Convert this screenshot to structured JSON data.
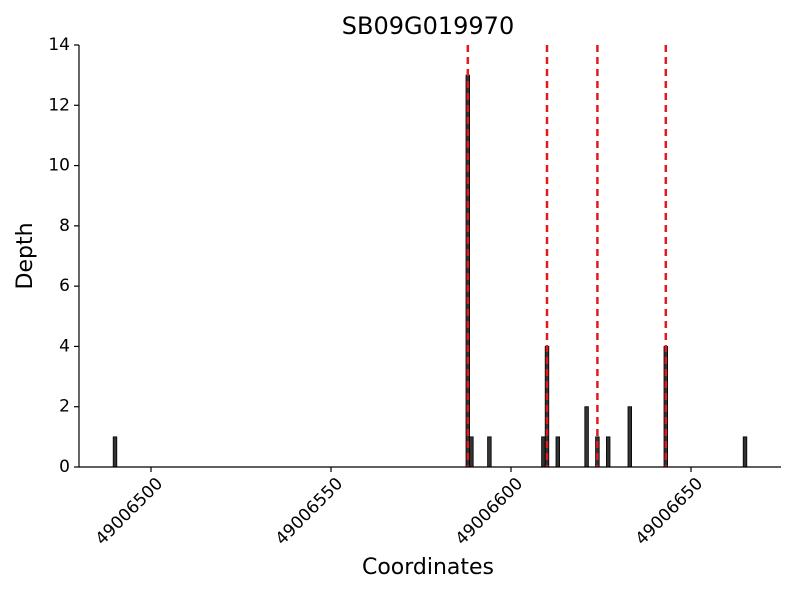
{
  "chart_data": {
    "type": "bar",
    "title": "SB09G019970",
    "x_label": "Coordinates",
    "y_label": "Depth",
    "x": [
      49006490,
      49006588,
      49006589,
      49006594,
      49006609,
      49006610,
      49006613,
      49006621,
      49006624,
      49006627,
      49006633,
      49006643,
      49006665
    ],
    "values": [
      1,
      13,
      1,
      1,
      1,
      4,
      1,
      2,
      1,
      1,
      2,
      4,
      1
    ],
    "color": "#333333",
    "bar_width": 1,
    "vlines": [
      49006588,
      49006610,
      49006624,
      49006643
    ],
    "vline_color": "#e31a1c",
    "xlim": [
      49006480,
      49006675
    ],
    "xticks": [
      49006500,
      49006550,
      49006600,
      49006650
    ],
    "ylim": [
      0,
      14
    ],
    "yticks": [
      0,
      2,
      4,
      6,
      8,
      10,
      12,
      14
    ],
    "grid": false
  }
}
